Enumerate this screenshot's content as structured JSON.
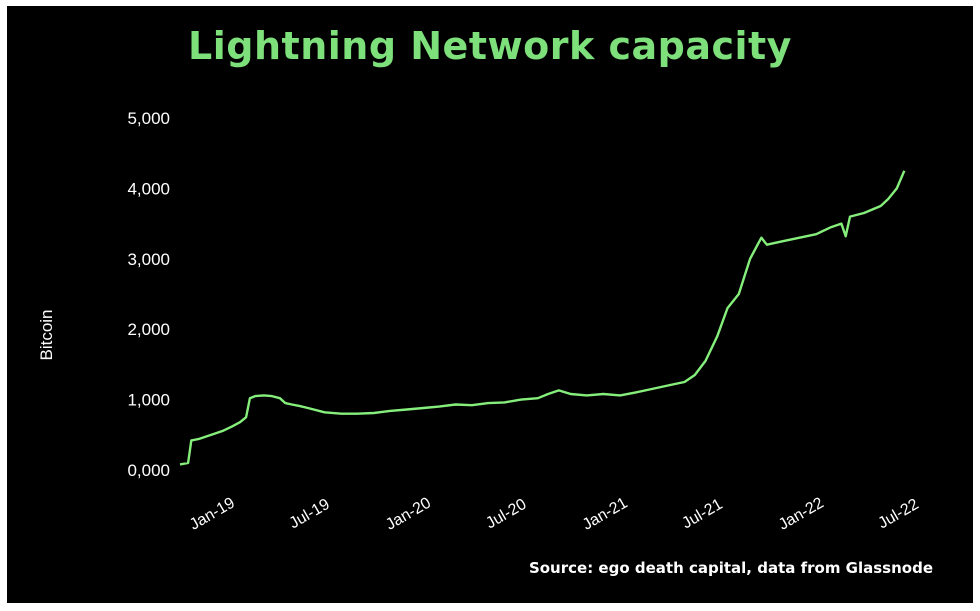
{
  "chart_data": {
    "type": "line",
    "title": "Lightning Network capacity",
    "ylabel": "Bitcoin",
    "xlabel": "",
    "source": "Source: ego death capital, data from Glassnode",
    "ylim": [
      0,
      5000
    ],
    "yticks": [
      "0,000",
      "1,000",
      "2,000",
      "3,000",
      "4,000",
      "5,000"
    ],
    "ytick_values": [
      0,
      1000,
      2000,
      3000,
      4000,
      5000
    ],
    "xlim": [
      "2018-11-05",
      "2022-07-20"
    ],
    "xticks": [
      {
        "label": "Jan-19",
        "date": "2019-01-01"
      },
      {
        "label": "Jul-19",
        "date": "2019-07-01"
      },
      {
        "label": "Jan-20",
        "date": "2020-01-01"
      },
      {
        "label": "Jul-20",
        "date": "2020-07-01"
      },
      {
        "label": "Jan-21",
        "date": "2021-01-01"
      },
      {
        "label": "Jul-21",
        "date": "2021-07-01"
      },
      {
        "label": "Jan-22",
        "date": "2022-01-01"
      },
      {
        "label": "Jul-22",
        "date": "2022-07-01"
      }
    ],
    "grid": false,
    "colors": {
      "line": "#86ef7c",
      "title": "#7ee07a",
      "background": "#000000"
    },
    "series": [
      {
        "x": [
          "2018-11-05",
          "2018-11-20",
          "2018-11-26",
          "2018-12-10",
          "2018-12-25",
          "2019-01-10",
          "2019-01-25",
          "2019-02-10",
          "2019-02-25",
          "2019-03-08",
          "2019-03-15",
          "2019-03-25",
          "2019-04-10",
          "2019-04-25",
          "2019-05-10",
          "2019-05-20",
          "2019-06-01",
          "2019-06-15",
          "2019-07-01",
          "2019-08-01",
          "2019-09-01",
          "2019-10-01",
          "2019-11-01",
          "2019-12-01",
          "2020-01-01",
          "2020-02-01",
          "2020-03-01",
          "2020-04-01",
          "2020-05-01",
          "2020-06-01",
          "2020-07-01",
          "2020-08-01",
          "2020-09-01",
          "2020-09-20",
          "2020-10-10",
          "2020-11-01",
          "2020-12-01",
          "2021-01-01",
          "2021-02-01",
          "2021-03-01",
          "2021-04-01",
          "2021-05-01",
          "2021-06-01",
          "2021-06-20",
          "2021-07-10",
          "2021-08-01",
          "2021-08-20",
          "2021-09-10",
          "2021-10-01",
          "2021-10-15",
          "2021-10-22",
          "2021-11-01",
          "2021-12-01",
          "2022-01-01",
          "2022-02-01",
          "2022-03-01",
          "2022-03-20",
          "2022-03-28",
          "2022-04-05",
          "2022-05-01",
          "2022-06-01",
          "2022-06-15",
          "2022-07-01",
          "2022-07-15"
        ],
        "y": [
          80,
          100,
          420,
          440,
          480,
          520,
          560,
          620,
          680,
          750,
          1020,
          1050,
          1060,
          1050,
          1020,
          950,
          930,
          910,
          880,
          820,
          800,
          800,
          810,
          840,
          860,
          880,
          900,
          930,
          920,
          950,
          960,
          1000,
          1020,
          1080,
          1130,
          1080,
          1060,
          1080,
          1060,
          1100,
          1150,
          1200,
          1250,
          1350,
          1550,
          1900,
          2300,
          2500,
          3000,
          3200,
          3300,
          3200,
          3250,
          3300,
          3350,
          3450,
          3500,
          3320,
          3600,
          3650,
          3750,
          3850,
          4000,
          4250
        ]
      }
    ]
  }
}
